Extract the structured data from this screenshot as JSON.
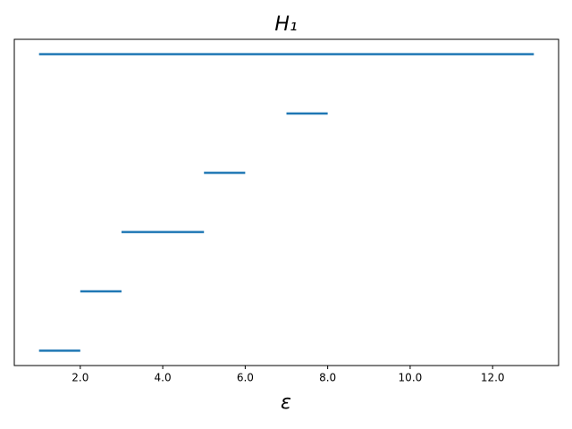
{
  "chart_data": {
    "type": "barcode",
    "title": "H₁",
    "xlabel": "ε",
    "intervals": [
      [
        1,
        2
      ],
      [
        2,
        3
      ],
      [
        3,
        5
      ],
      [
        5,
        6
      ],
      [
        7,
        8
      ],
      [
        1,
        13
      ]
    ],
    "color": "#1f77b4",
    "xlim": [
      0.4,
      13.6
    ],
    "xticks": [
      {
        "value": 2,
        "label": "2.0"
      },
      {
        "value": 4,
        "label": "4.0"
      },
      {
        "value": 6,
        "label": "6.0"
      },
      {
        "value": 8,
        "label": "8.0"
      },
      {
        "value": 10,
        "label": "10.0"
      },
      {
        "value": 12,
        "label": "12.0"
      }
    ]
  }
}
